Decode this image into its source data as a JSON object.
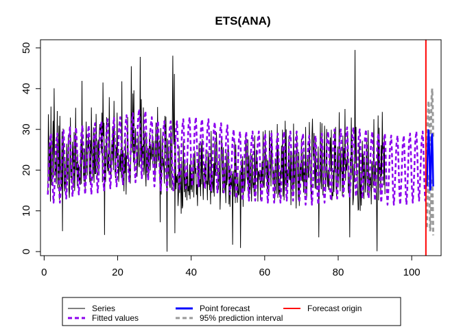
{
  "chart_data": {
    "type": "line",
    "title": "ETS(ANA)",
    "xlabel": "",
    "ylabel": "",
    "xlim": [
      -1,
      108
    ],
    "ylim": [
      -1,
      52
    ],
    "x_ticks": [
      0,
      20,
      40,
      60,
      80,
      100
    ],
    "y_ticks": [
      0,
      10,
      20,
      30,
      40,
      50
    ],
    "grid": false,
    "legend_position": "bottom",
    "obs_per_unit": 7,
    "series": [
      {
        "name": "Series",
        "color": "#000000",
        "style": "solid",
        "x_start": 1,
        "values": [
          14.0,
          33.7,
          27.3,
          17.3,
          26.0,
          12.3,
          35.6,
          16.3,
          17.0,
          24.4,
          32.1,
          18.2,
          40.1,
          23.9,
          18.9,
          22.9,
          16.6,
          22.1,
          34.5,
          15.5,
          17.5,
          30.9,
          12.7,
          33.3,
          20.6,
          16.5,
          15.4,
          29.5,
          5.0,
          30.2,
          25.0,
          17.0,
          14.8,
          22.3,
          16.2,
          14.9,
          26.5,
          20.8,
          17.6,
          28.6,
          15.4,
          13.2,
          20.5,
          32.9,
          18.1,
          20.9,
          16.7,
          27.0,
          24.0,
          15.6,
          29.3,
          14.9,
          20.2,
          35.3,
          20.0,
          22.0,
          16.1,
          23.9,
          17.5,
          21.4,
          16.6,
          18.8,
          16.4,
          26.5,
          16.6,
          41.9,
          22.6,
          24.4,
          18.2,
          17.2,
          25.3,
          15.2,
          20.1,
          31.9,
          19.8,
          18.7,
          27.3,
          25.3,
          29.2,
          18.8,
          17.0,
          27.3,
          16.9,
          35.4,
          24.2,
          22.9,
          18.0,
          30.5,
          16.9,
          29.1,
          19.1,
          19.1,
          33.8,
          24.9,
          17.6,
          26.2,
          27.5,
          18.9,
          28.9,
          31.3,
          29.6,
          31.5,
          24.1,
          34.1,
          17.0,
          41.5,
          28.3,
          31.6,
          4.1,
          26.0,
          17.1,
          22.9,
          33.0,
          21.7,
          19.7,
          24.2,
          19.2,
          37.9,
          27.0,
          22.5,
          17.8,
          23.5,
          27.4,
          22.3,
          30.8,
          20.0,
          37.0,
          26.0,
          19.4,
          18.0,
          25.6,
          22.9,
          34.1,
          20.5,
          24.2,
          17.1,
          20.7,
          23.8,
          19.6,
          25.2,
          18.1,
          41.8,
          16.9,
          24.9,
          21.4,
          14.8,
          23.2,
          19.3,
          27.9,
          14.0,
          23.6,
          22.8,
          33.0,
          24.9,
          22.3,
          18.5,
          20.9,
          16.7,
          22.8,
          45.5,
          29.3,
          24.3,
          38.8,
          21.9,
          39.6,
          20.2,
          25.9,
          30.3,
          24.1,
          23.4,
          18.4,
          22.7,
          28.7,
          21.5,
          20.7,
          22.5,
          47.8,
          23.0,
          37.4,
          19.3,
          25.9,
          23.1,
          35.4,
          18.8,
          21.3,
          29.6,
          19.4,
          16.0,
          28.6,
          19.3,
          21.5,
          25.4,
          18.5,
          25.8,
          29.2,
          19.9,
          26.4,
          22.6,
          24.0,
          28.8,
          21.2,
          24.0,
          27.2,
          23.7,
          18.1,
          26.1,
          31.7,
          20.5,
          23.8,
          35.5,
          22.1,
          23.3,
          26.7,
          27.3,
          7.2,
          30.3,
          14.0,
          20.5,
          28.4,
          20.9,
          22.9,
          20.2,
          16.7,
          33.3,
          24.1,
          33.1,
          21.8,
          0.0,
          27.7,
          22.4,
          18.4,
          26.0,
          16.2,
          15.6,
          29.7,
          25.5,
          15.1,
          28.6,
          48.1,
          31.6,
          26.3,
          43.6,
          4.5,
          27.6,
          15.3,
          18.6,
          16.9,
          19.0,
          11.2,
          14.3,
          25.9,
          14.4,
          20.6,
          16.8,
          9.3,
          22.2,
          10.6,
          11.3,
          27.1,
          18.3,
          14.6,
          22.2,
          13.3,
          16.7,
          19.3,
          12.6,
          22.8,
          14.8,
          16.1,
          13.8,
          21.4,
          12.9,
          23.1,
          15.2,
          19.2,
          14.6,
          19.5,
          23.7,
          13.3,
          19.9,
          24.7,
          19.1,
          20.5,
          13.9,
          16.5,
          11.2,
          21.7,
          18.2,
          26.6,
          15.9,
          17.8,
          13.6,
          26.7,
          16.5,
          27.6,
          17.9,
          12.7,
          19.2,
          18.1,
          21.5,
          15.4,
          25.1,
          16.6,
          17.4,
          12.6,
          24.6,
          16.4,
          23.4,
          15.1,
          17.2,
          11.6,
          29.6,
          14.4,
          19.4,
          16.4,
          14.4,
          21.7,
          13.5,
          27.2,
          18.7,
          18.7,
          29.3,
          25.6,
          19.8,
          19.3,
          15.2,
          17.9,
          23.6,
          10.3,
          15.4,
          24.7,
          27.9,
          24.7,
          14.4,
          25.6,
          17.3,
          14.6,
          21.5,
          16.5,
          11.9,
          24.3,
          16.3,
          17.9,
          26.3,
          24.7,
          11.6,
          21.1,
          11.0,
          20.4,
          16.0,
          16.2,
          19.1,
          1.7,
          19.8,
          16.4,
          13.5,
          27.1,
          11.9,
          26.3,
          18.6,
          17.1,
          12.0,
          19.1,
          13.9,
          14.0,
          16.3,
          19.9,
          0.9,
          18.9,
          22.6,
          14.6,
          23.4,
          11.0,
          18.5,
          19.7,
          14.8,
          17.5,
          28.4,
          26.5,
          18.6,
          17.4,
          27.5,
          13.7,
          23.6,
          15.4,
          15.0,
          24.3,
          16.8,
          12.3,
          23.9,
          17.6,
          15.6,
          17.0,
          13.6,
          28.5,
          13.5,
          20.0,
          25.0,
          19.6,
          23.0,
          12.3,
          19.8,
          19.5,
          17.6,
          19.2,
          12.7,
          19.8,
          17.1,
          22.1,
          15.6,
          29.5,
          16.6,
          15.7,
          20.6,
          29.8,
          18.2,
          20.5,
          22.9,
          14.1,
          22.4,
          17.2,
          13.8,
          29.7,
          24.7,
          23.5,
          16.0,
          29.8,
          26.6,
          18.5,
          17.0,
          20.1,
          19.2,
          12.6,
          22.9,
          21.8,
          14.2,
          21.5,
          31.3,
          13.2,
          25.2,
          14.0,
          17.9,
          13.3,
          19.9,
          17.9,
          26.0,
          18.8,
          29.9,
          13.5,
          25.8,
          12.6,
          18.4,
          32.1,
          16.2,
          30.0,
          14.3,
          20.0,
          16.7,
          19.4,
          28.3,
          18.0,
          17.5,
          24.7,
          11.4,
          22.0,
          24.3,
          15.7,
          14.3,
          31.4,
          16.5,
          17.7,
          23.8,
          16.7,
          10.6,
          29.4,
          22.5,
          18.0,
          12.7,
          24.4,
          11.2,
          18.8,
          21.6,
          17.6,
          27.7,
          17.5,
          17.3,
          24.5,
          14.5,
          19.7,
          19.3,
          14.0,
          30.6,
          17.4,
          13.3,
          20.5,
          23.6,
          18.5,
          18.1,
          31.8,
          23.3,
          20.4,
          15.7,
          12.6,
          28.0,
          32.6,
          25.4,
          22.4,
          29.1,
          19.8,
          15.5,
          28.0,
          15.3,
          20.6,
          20.7,
          20.5,
          25.8,
          3.5,
          16.2,
          17.5,
          31.8,
          17.5,
          15.3,
          31.5,
          18.5,
          13.8,
          18.1,
          22.1,
          30.9,
          18.6,
          14.7,
          20.1,
          30.1,
          19.0,
          15.9,
          20.1,
          15.1,
          16.9,
          24.4,
          28.0,
          19.7,
          29.9,
          12.6,
          14.6,
          13.6,
          20.0,
          14.6,
          29.8,
          19.5,
          30.6,
          15.9,
          13.4,
          19.8,
          25.8,
          16.3,
          18.6,
          34.2,
          19.0,
          14.8,
          25.5,
          19.7,
          19.6,
          13.6,
          28.5,
          14.4,
          25.4,
          21.3,
          35.0,
          17.4,
          22.6,
          19.9,
          21.7,
          29.6,
          15.5,
          14.3,
          18.8,
          3.5,
          23.1,
          22.2,
          32.9,
          18.7,
          27.5,
          11.4,
          13.1,
          21.5,
          17.0,
          49.5,
          21.6,
          30.6,
          18.7,
          20.0,
          15.3,
          10.2,
          10.3,
          26.8,
          17.4,
          10.0,
          19.6,
          11.3,
          18.5,
          27.2,
          17.1,
          24.0,
          12.9,
          23.3,
          18.6,
          14.5,
          19.0,
          27.5,
          18.8,
          13.8,
          29.8,
          19.0,
          13.5,
          18.6,
          16.3,
          18.3,
          11.6,
          22.2,
          21.1,
          15.6,
          20.7,
          32.5,
          16.1,
          18.7,
          22.1,
          17.2,
          12.3,
          0.1,
          21.6,
          33.4,
          12.6,
          30.4,
          19.7,
          21.2,
          14.4,
          26.1,
          18.6,
          34.3,
          24.1,
          26.7,
          16.3,
          28.1,
          14.1
        ]
      },
      {
        "name": "Fitted values",
        "color": "#8B00EE",
        "style": "dashed",
        "x_start": 1,
        "base": [
          20,
          20,
          21,
          21.5,
          22,
          22,
          22.5,
          23,
          23.5,
          24,
          24.5,
          25,
          26,
          25.5,
          24,
          23,
          23,
          23,
          23.5,
          24,
          24,
          23.5,
          22.8,
          22.5,
          22,
          21,
          20.5,
          20.5,
          20.5,
          20,
          20,
          20,
          20.5,
          20.5,
          20,
          19.5,
          19.5,
          20,
          20.5,
          21,
          21.5,
          21.5,
          21,
          21,
          20.5,
          20,
          19.5,
          19.5,
          19.5,
          20,
          20.5
        ],
        "season": [
          -6,
          -3,
          0,
          4,
          7,
          8,
          9,
          6,
          2,
          -3,
          -6,
          -8
        ],
        "cap": 104
      },
      {
        "name": "Point forecast",
        "color": "#0000FF",
        "style": "solid",
        "x": [
          104.14,
          104.29,
          104.43,
          104.57,
          104.71,
          104.86,
          105.0,
          105.14,
          105.29,
          105.43,
          105.57,
          105.71,
          105.86
        ],
        "values": [
          16,
          22,
          27,
          30,
          28,
          22,
          15,
          16,
          23,
          28,
          29,
          24,
          16
        ]
      },
      {
        "name": "95% prediction interval",
        "color": "#999999",
        "style": "dashed",
        "x": [
          104.14,
          104.29,
          104.43,
          104.57,
          104.71,
          104.86,
          105.0,
          105.14,
          105.29,
          105.43,
          105.57,
          105.71,
          105.86
        ],
        "upper": [
          24,
          29,
          34,
          37,
          35,
          31,
          26,
          27,
          33,
          38,
          40,
          36,
          28
        ],
        "lower": [
          6,
          12,
          17,
          19,
          18,
          13,
          5,
          6,
          12,
          17,
          18,
          13,
          4
        ]
      }
    ],
    "annotations": [
      {
        "name": "Forecast origin",
        "type": "vline",
        "x": 103.86,
        "color": "#FF0000"
      }
    ]
  }
}
